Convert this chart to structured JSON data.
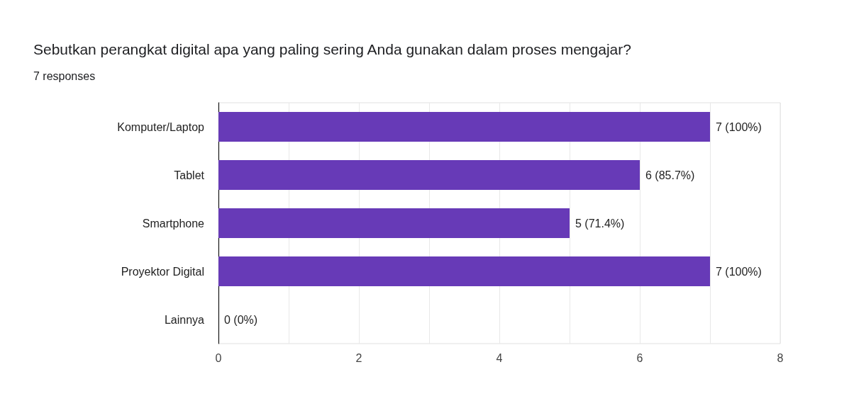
{
  "chart_data": {
    "type": "bar",
    "orientation": "horizontal",
    "title": "Sebutkan perangkat digital apa yang paling sering Anda gunakan dalam proses mengajar?",
    "subtitle": "7 responses",
    "categories": [
      "Komputer/Laptop",
      "Tablet",
      "Smartphone",
      "Proyektor Digital",
      "Lainnya"
    ],
    "values": [
      7,
      6,
      5,
      7,
      0
    ],
    "value_labels": [
      "7 (100%)",
      "6 (85.7%)",
      "5 (71.4%)",
      "7 (100%)",
      "0 (0%)"
    ],
    "color": "#673ab7",
    "xlim": [
      0,
      8
    ],
    "xticks": [
      0,
      {
        "value": 1,
        "label": null
      },
      2,
      {
        "value": 3,
        "label": null
      },
      4,
      {
        "value": 5,
        "label": null
      },
      6,
      {
        "value": 7,
        "label": null
      },
      8
    ],
    "grid": "x"
  }
}
